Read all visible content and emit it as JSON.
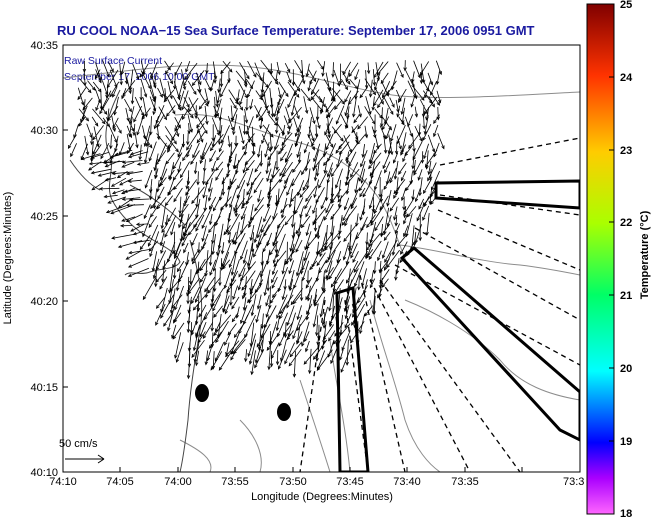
{
  "chart_data": {
    "type": "quiver",
    "title": "RU COOL  NOAA−15  Sea Surface Temperature:  September 17, 2006 0951 GMT",
    "annotation_lines": [
      "Raw Surface Current",
      "September 17, 2006 10:00 GMT"
    ],
    "xlabel": "Longitude (Degrees:Minutes)",
    "ylabel": "Latitude (Degrees:Minutes)",
    "x_ticks": [
      "74:10",
      "74:05",
      "74:00",
      "73:55",
      "73:50",
      "73:45",
      "73:40",
      "73:35",
      "73:3"
    ],
    "y_ticks": [
      "40:10",
      "40:15",
      "40:20",
      "40:25",
      "40:30",
      "40:35"
    ],
    "xlim_minutes_west": [
      10,
      33
    ],
    "ylim_minutes_north": [
      10,
      35
    ],
    "scale_label": "50 cm/s",
    "colorbar": {
      "label": "Temperature (°C)",
      "ticks": [
        "18",
        "19",
        "20",
        "21",
        "22",
        "23",
        "24",
        "25"
      ],
      "range": [
        18,
        25
      ],
      "colormap": [
        "#ff00ff",
        "#0000ff",
        "#00ffff",
        "#00ff00",
        "#ffff00",
        "#ff8000",
        "#ff0000",
        "#800000"
      ]
    },
    "grid": false,
    "colors": {
      "title": "#1a1aa0",
      "vectors": "#000000",
      "contours": "#888888",
      "sector_lines": "#000000"
    }
  }
}
